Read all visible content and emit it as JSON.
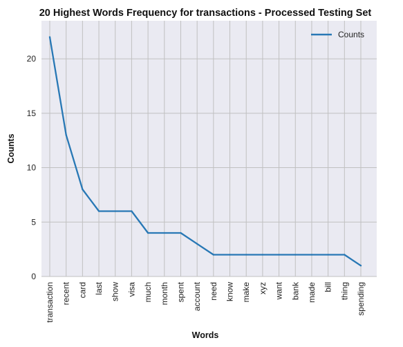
{
  "chart_data": {
    "type": "line",
    "title": "20 Highest Words Frequency for transactions - Processed Testing Set",
    "xlabel": "Words",
    "ylabel": "Counts",
    "categories": [
      "transaction",
      "recent",
      "card",
      "last",
      "show",
      "visa",
      "much",
      "month",
      "spent",
      "account",
      "need",
      "know",
      "make",
      "xyz",
      "want",
      "bank",
      "made",
      "bill",
      "thing",
      "spending"
    ],
    "series": [
      {
        "name": "Counts",
        "values": [
          22,
          13,
          8,
          6,
          6,
          6,
          4,
          4,
          4,
          3,
          2,
          2,
          2,
          2,
          2,
          2,
          2,
          2,
          2,
          1
        ]
      }
    ],
    "ylim": [
      0,
      23.5
    ],
    "yticks": [
      0,
      5,
      10,
      15,
      20
    ],
    "grid": true,
    "legend": "top-right",
    "colors": {
      "line": "#2878b5",
      "plot_background": "#eaeaf2",
      "grid": "#c0c0c0"
    }
  }
}
